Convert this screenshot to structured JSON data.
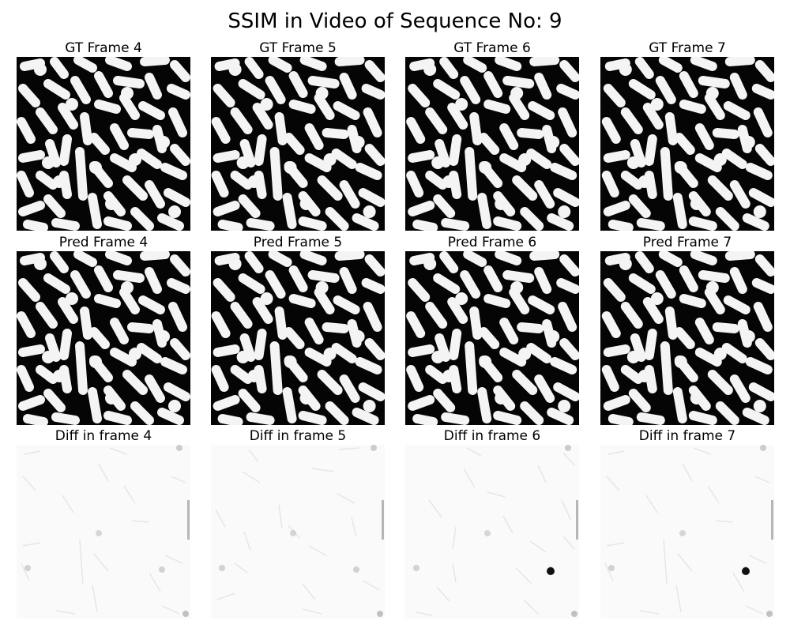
{
  "title": "SSIM in Video of Sequence No: 9",
  "rows": [
    {
      "kind": "gt",
      "panels": [
        {
          "label": "GT Frame 4"
        },
        {
          "label": "GT Frame 5"
        },
        {
          "label": "GT Frame 6"
        },
        {
          "label": "GT Frame 7"
        }
      ]
    },
    {
      "kind": "pred",
      "panels": [
        {
          "label": "Pred Frame 4"
        },
        {
          "label": "Pred Frame 5"
        },
        {
          "label": "Pred Frame 6"
        },
        {
          "label": "Pred Frame 7"
        }
      ]
    },
    {
      "kind": "diff",
      "panels": [
        {
          "label": "Diff in frame 4"
        },
        {
          "label": "Diff in frame 5"
        },
        {
          "label": "Diff in frame 6"
        },
        {
          "label": "Diff in frame 7"
        }
      ]
    }
  ],
  "colors": {
    "foreground_pattern": "#f4f4f4",
    "background_pattern": "#050505",
    "diff_background": "#fafafa",
    "diff_marks": "#888888"
  }
}
